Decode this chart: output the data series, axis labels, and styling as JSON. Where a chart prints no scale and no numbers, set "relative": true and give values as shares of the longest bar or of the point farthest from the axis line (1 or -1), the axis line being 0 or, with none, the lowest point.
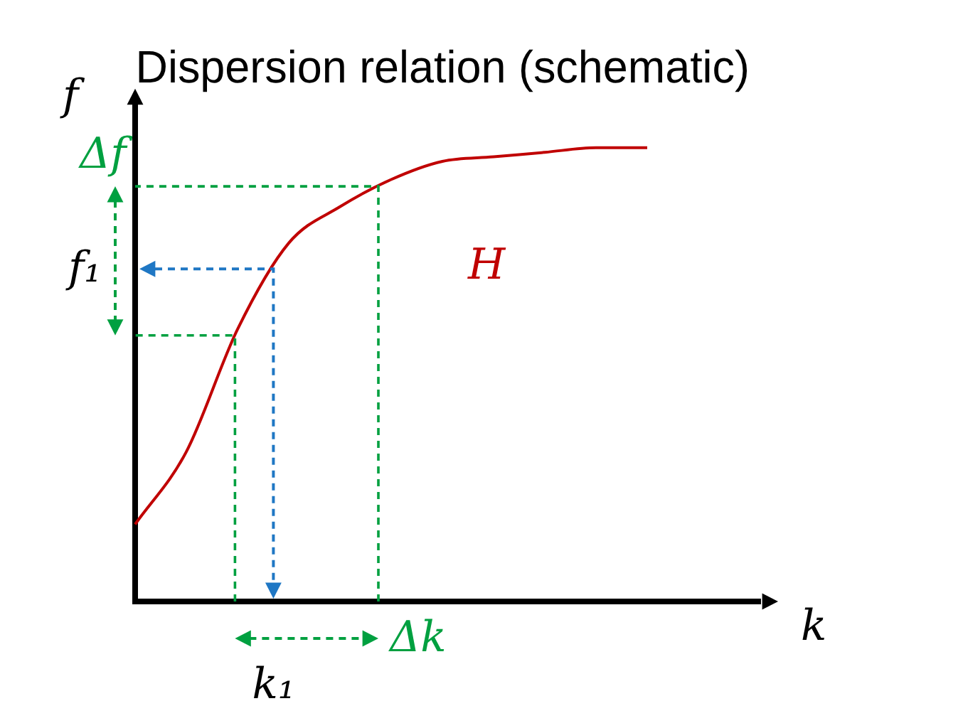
{
  "chart_data": {
    "type": "line",
    "title": "Dispersion relation (schematic)",
    "xlabel": "k",
    "ylabel": "f",
    "relative": true,
    "categories": [
      null,
      null,
      null,
      null,
      null,
      null,
      null,
      null,
      null,
      null,
      null,
      null,
      null
    ],
    "series": [
      {
        "name": "H",
        "color": "#c00000",
        "values": [
          0.17,
          0.33,
          0.6,
          0.79,
          0.87,
          0.93,
          0.97,
          0.98,
          0.99,
          1.0,
          1.0,
          null,
          null
        ]
      }
    ],
    "annotations": [
      "f₁",
      "Δf",
      "k₁",
      "Δk"
    ],
    "grid": false,
    "legend": false,
    "marker": "none",
    "line_style": "solid"
  }
}
